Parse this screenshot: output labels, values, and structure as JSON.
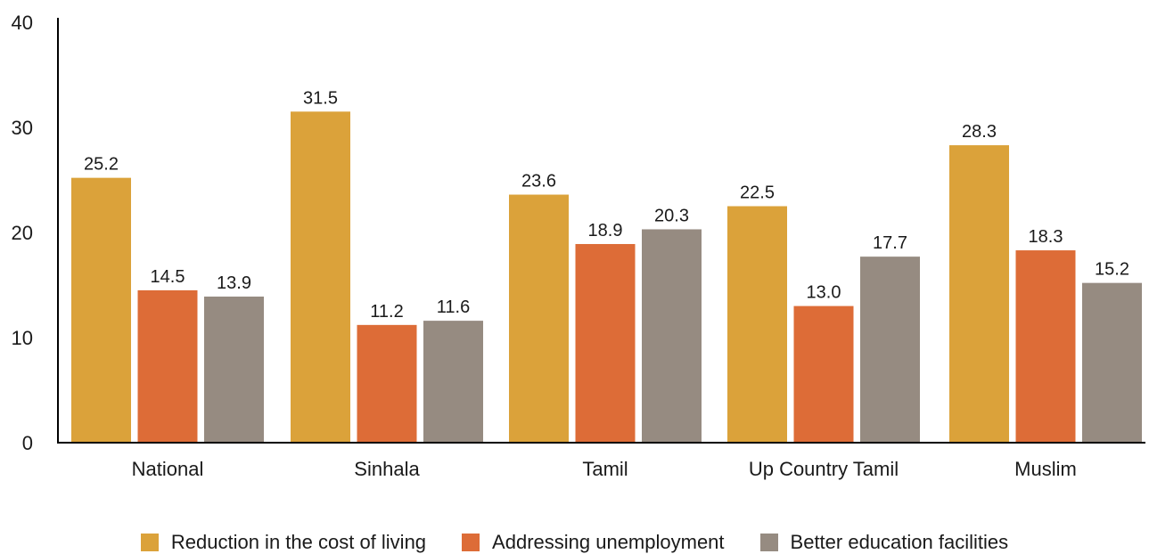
{
  "chart_data": {
    "type": "bar",
    "categories": [
      "National",
      "Sinhala",
      "Tamil",
      "Up Country Tamil",
      "Muslim"
    ],
    "series": [
      {
        "name": "Reduction in the cost of living",
        "color": "#DBA23A",
        "values": [
          25.2,
          31.5,
          23.6,
          22.5,
          28.3
        ]
      },
      {
        "name": "Addressing unemployment",
        "color": "#DD6C37",
        "values": [
          14.5,
          11.2,
          18.9,
          13.0,
          18.3
        ]
      },
      {
        "name": "Better education facilities",
        "color": "#968B81",
        "values": [
          13.9,
          11.6,
          20.3,
          17.7,
          15.2
        ]
      }
    ],
    "ylim": [
      0,
      40
    ],
    "yticks": [
      0,
      10,
      20,
      30,
      40
    ],
    "grid": false,
    "legend_position": "bottom-center",
    "data_labels": true
  }
}
